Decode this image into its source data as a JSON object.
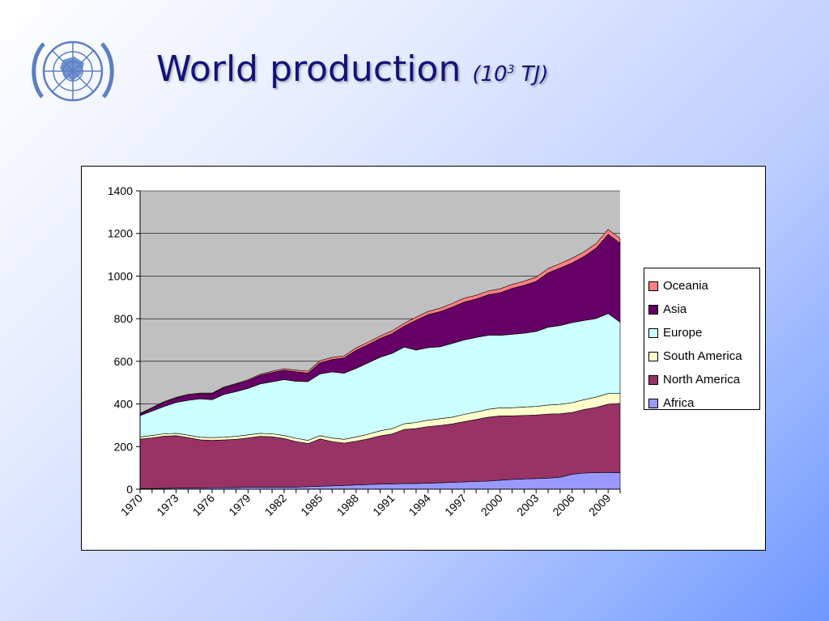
{
  "slide": {
    "title": "World production",
    "unit_base": "(10",
    "unit_exp": "3",
    "unit_tail": " TJ)"
  },
  "logo": {
    "name": "un-emblem",
    "color": "#5b7fc4"
  },
  "chart_data": {
    "type": "area",
    "stacked": true,
    "title": "",
    "xlabel": "",
    "ylabel": "",
    "ylim": [
      0,
      1400
    ],
    "yticks": [
      0,
      200,
      400,
      600,
      800,
      1000,
      1200,
      1400
    ],
    "x": [
      1970,
      1971,
      1972,
      1973,
      1974,
      1975,
      1976,
      1977,
      1978,
      1979,
      1980,
      1981,
      1982,
      1983,
      1984,
      1985,
      1986,
      1987,
      1988,
      1989,
      1990,
      1991,
      1992,
      1993,
      1994,
      1995,
      1996,
      1997,
      1998,
      1999,
      2000,
      2001,
      2002,
      2003,
      2004,
      2005,
      2006,
      2007,
      2008,
      2009,
      2010
    ],
    "xtick_labels": [
      "1970",
      "1973",
      "1976",
      "1979",
      "1982",
      "1985",
      "1988",
      "1991",
      "1994",
      "1997",
      "2000",
      "2003",
      "2006",
      "2009"
    ],
    "plot_background": "#c0c0c0",
    "grid": "horizontal",
    "legend_position": "right",
    "legend_order": [
      "Oceania",
      "Asia",
      "Europe",
      "South America",
      "North America",
      "Africa"
    ],
    "series": [
      {
        "name": "Africa",
        "color": "#9999ff",
        "values": [
          3,
          3,
          4,
          5,
          6,
          6,
          7,
          7,
          8,
          9,
          10,
          10,
          10,
          10,
          12,
          14,
          16,
          18,
          20,
          22,
          24,
          25,
          26,
          27,
          28,
          30,
          32,
          34,
          36,
          38,
          42,
          46,
          48,
          50,
          52,
          56,
          70,
          76,
          78,
          79,
          77
        ]
      },
      {
        "name": "North America",
        "color": "#993366",
        "values": [
          232,
          238,
          245,
          246,
          236,
          226,
          222,
          224,
          226,
          232,
          238,
          236,
          228,
          214,
          202,
          222,
          208,
          198,
          205,
          214,
          226,
          234,
          254,
          258,
          266,
          269,
          274,
          283,
          291,
          300,
          302,
          298,
          298,
          298,
          301,
          298,
          290,
          298,
          306,
          320,
          326
        ]
      },
      {
        "name": "South America",
        "color": "#ffffcc",
        "values": [
          10,
          11,
          11,
          11,
          12,
          12,
          13,
          13,
          14,
          14,
          14,
          14,
          14,
          15,
          15,
          15,
          16,
          18,
          20,
          22,
          24,
          25,
          27,
          28,
          30,
          32,
          32,
          34,
          35,
          37,
          38,
          38,
          40,
          40,
          42,
          44,
          46,
          46,
          48,
          50,
          46
        ]
      },
      {
        "name": "Europe",
        "color": "#ccffff",
        "values": [
          100,
          115,
          128,
          145,
          163,
          180,
          178,
          201,
          210,
          218,
          232,
          244,
          262,
          267,
          276,
          290,
          310,
          310,
          322,
          335,
          345,
          353,
          360,
          340,
          340,
          337,
          346,
          349,
          350,
          347,
          340,
          345,
          346,
          352,
          365,
          370,
          376,
          372,
          369,
          375,
          335
        ]
      },
      {
        "name": "Asia",
        "color": "#660066",
        "values": [
          9,
          14,
          20,
          21,
          25,
          24,
          28,
          32,
          35,
          37,
          40,
          43,
          44,
          45,
          40,
          52,
          58,
          72,
          85,
          85,
          88,
          93,
          98,
          140,
          155,
          165,
          170,
          178,
          180,
          190,
          200,
          215,
          225,
          235,
          255,
          270,
          280,
          300,
          330,
          372,
          370
        ]
      },
      {
        "name": "Oceania",
        "color": "#ff8080",
        "values": [
          2,
          2,
          3,
          3,
          3,
          3,
          3,
          3,
          3,
          4,
          5,
          6,
          7,
          8,
          9,
          10,
          10,
          10,
          11,
          12,
          12,
          13,
          13,
          14,
          15,
          16,
          17,
          18,
          18,
          18,
          18,
          19,
          19,
          20,
          20,
          21,
          22,
          22,
          22,
          23,
          22
        ]
      }
    ]
  }
}
